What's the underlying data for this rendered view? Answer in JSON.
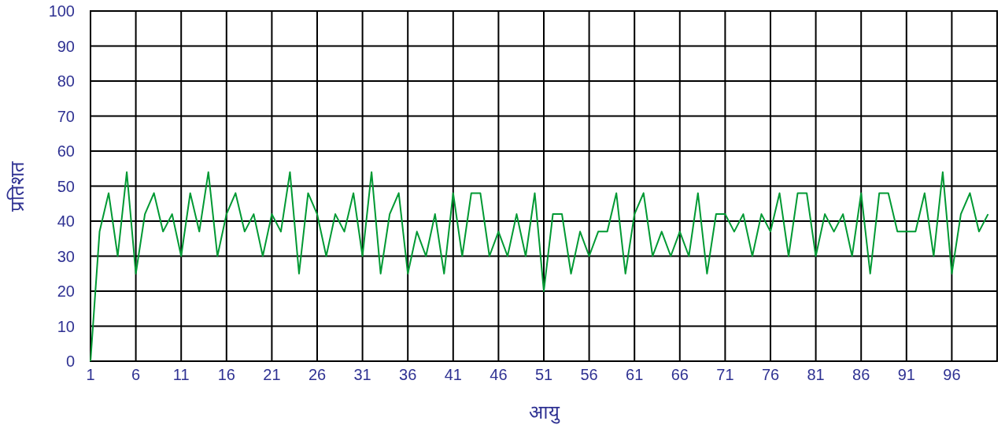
{
  "chart_data": {
    "type": "line",
    "xlabel": "आयु",
    "ylabel": "प्रतिशत",
    "color": "#009933",
    "x": [
      1,
      2,
      3,
      4,
      5,
      6,
      7,
      8,
      9,
      10,
      11,
      12,
      13,
      14,
      15,
      16,
      17,
      18,
      19,
      20,
      21,
      22,
      23,
      24,
      25,
      26,
      27,
      28,
      29,
      30,
      31,
      32,
      33,
      34,
      35,
      36,
      37,
      38,
      39,
      40,
      41,
      42,
      43,
      44,
      45,
      46,
      47,
      48,
      49,
      50,
      51,
      52,
      53,
      54,
      55,
      56,
      57,
      58,
      59,
      60,
      61,
      62,
      63,
      64,
      65,
      66,
      67,
      68,
      69,
      70,
      71,
      72,
      73,
      74,
      75,
      76,
      77,
      78,
      79,
      80,
      81,
      82,
      83,
      84,
      85,
      86,
      87,
      88,
      89,
      90,
      91,
      92,
      93,
      94,
      95,
      96,
      97,
      98,
      99,
      100
    ],
    "values": [
      0,
      37,
      48,
      30,
      54,
      25,
      42,
      48,
      37,
      42,
      30,
      48,
      37,
      54,
      30,
      42,
      48,
      37,
      42,
      30,
      42,
      37,
      54,
      25,
      48,
      42,
      30,
      42,
      37,
      48,
      30,
      54,
      25,
      42,
      48,
      25,
      37,
      30,
      42,
      25,
      48,
      30,
      48,
      48,
      30,
      37,
      30,
      42,
      30,
      48,
      20,
      42,
      42,
      25,
      37,
      30,
      37,
      37,
      48,
      25,
      42,
      48,
      30,
      37,
      30,
      37,
      30,
      48,
      25,
      42,
      42,
      37,
      42,
      30,
      42,
      37,
      48,
      30,
      48,
      48,
      30,
      42,
      37,
      42,
      30,
      48,
      25,
      48,
      48,
      37,
      37,
      37,
      48,
      30,
      54,
      25,
      42,
      48,
      37,
      42
    ],
    "xlim": [
      1,
      101
    ],
    "ylim": [
      0,
      100
    ],
    "xticks": [
      1,
      6,
      11,
      16,
      21,
      26,
      31,
      36,
      41,
      46,
      51,
      56,
      61,
      66,
      71,
      76,
      81,
      86,
      91,
      96
    ],
    "yticks": [
      0,
      10,
      20,
      30,
      40,
      50,
      60,
      70,
      80,
      90,
      100
    ],
    "grid": true
  }
}
